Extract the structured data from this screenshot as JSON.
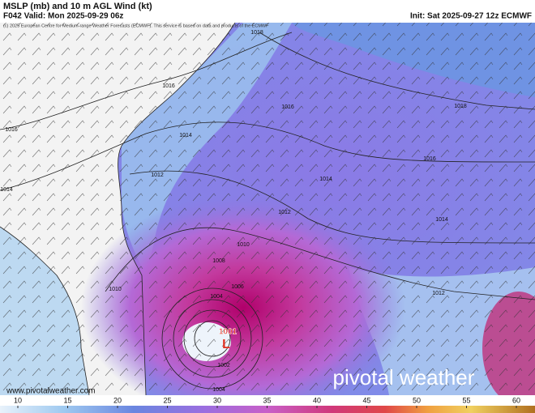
{
  "header": {
    "title": "MSLP (mb) and 10 m AGL Wind (kt)",
    "valid": "F042 Valid: Mon 2025-09-29 06z",
    "init": "Init: Sat 2025-09-27 12z ECMWF",
    "credit": "(c) 2025 European Centre for Medium-range Weather Forecasts (ECMWF). This service is based on data and products of the ECMWF"
  },
  "map": {
    "isobar_labels": [
      1018,
      1016,
      1016,
      1016,
      1018,
      1016,
      1014,
      1014,
      1014,
      1012,
      1012,
      1014,
      1010,
      1012,
      1010,
      1008,
      1006,
      1004,
      1002,
      1004,
      1001
    ],
    "low_marker": "L"
  },
  "footer": {
    "website": "www.pivotalweather.com",
    "brand": "pivotal weather"
  },
  "colorbar": {
    "ticks": [
      10,
      15,
      20,
      25,
      30,
      35,
      40,
      45,
      50,
      55,
      60
    ]
  }
}
